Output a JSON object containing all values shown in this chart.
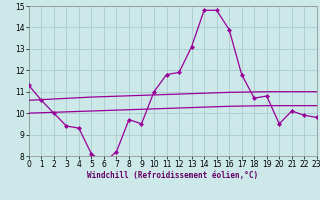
{
  "x": [
    0,
    1,
    2,
    3,
    4,
    5,
    6,
    7,
    8,
    9,
    10,
    11,
    12,
    13,
    14,
    15,
    16,
    17,
    18,
    19,
    20,
    21,
    22,
    23
  ],
  "windchill": [
    11.3,
    10.6,
    10.0,
    9.4,
    9.3,
    8.1,
    7.7,
    8.2,
    9.7,
    9.5,
    11.0,
    11.8,
    11.9,
    13.1,
    14.8,
    14.8,
    13.9,
    11.8,
    10.7,
    10.8,
    9.5,
    10.1,
    9.9,
    9.8
  ],
  "trend1": [
    10.6,
    10.63,
    10.66,
    10.69,
    10.72,
    10.75,
    10.77,
    10.79,
    10.81,
    10.83,
    10.85,
    10.87,
    10.89,
    10.91,
    10.93,
    10.95,
    10.97,
    10.98,
    10.99,
    11.0,
    11.0,
    11.0,
    11.0,
    11.0
  ],
  "trend2": [
    10.0,
    10.02,
    10.04,
    10.06,
    10.08,
    10.1,
    10.12,
    10.14,
    10.16,
    10.18,
    10.2,
    10.22,
    10.24,
    10.26,
    10.28,
    10.3,
    10.32,
    10.33,
    10.34,
    10.35,
    10.35,
    10.35,
    10.35,
    10.35
  ],
  "line_color": "#990099",
  "bg_color": "#cce8e8",
  "grid_color": "#aacccc",
  "xlabel": "Windchill (Refroidissement éolien,°C)",
  "ylim": [
    8,
    15
  ],
  "xlim": [
    0,
    23
  ],
  "yticks": [
    8,
    9,
    10,
    11,
    12,
    13,
    14,
    15
  ],
  "xticks": [
    0,
    1,
    2,
    3,
    4,
    5,
    6,
    7,
    8,
    9,
    10,
    11,
    12,
    13,
    14,
    15,
    16,
    17,
    18,
    19,
    20,
    21,
    22,
    23
  ],
  "xlabel_fontsize": 5.5,
  "tick_fontsize": 5.5
}
